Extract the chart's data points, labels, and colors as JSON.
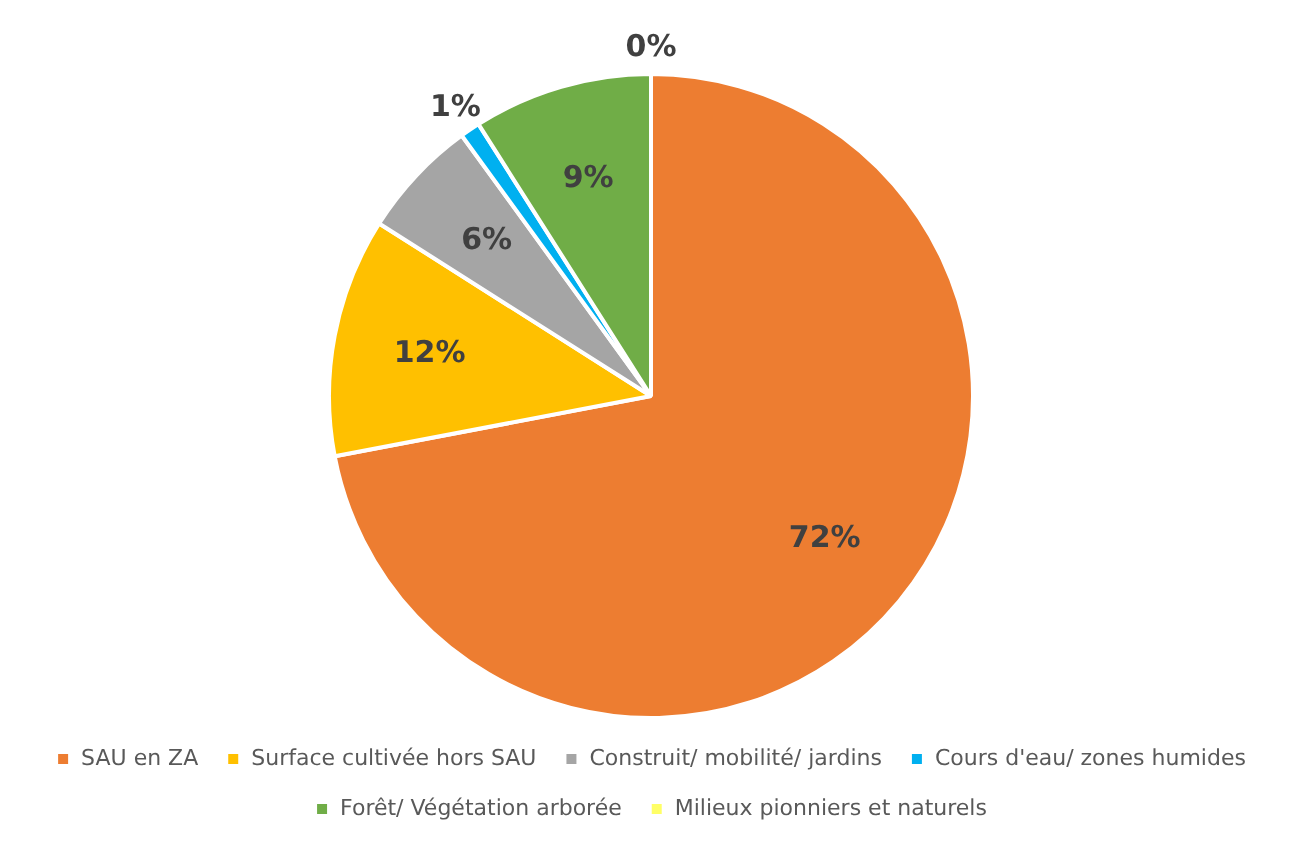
{
  "chart_data": {
    "type": "pie",
    "categories": [
      "SAU en ZA",
      "Surface cultivée hors SAU",
      "Construit/ mobilité/ jardins",
      "Cours d'eau/ zones humides",
      "Forêt/ Végétation arborée",
      "Milieux pionniers et naturels"
    ],
    "values": [
      72,
      12,
      6,
      1,
      9,
      0
    ],
    "colors": [
      "#ed7d31",
      "#ffc000",
      "#a5a5a5",
      "#00b0f0",
      "#70ad47",
      "#ffff66"
    ],
    "value_labels": [
      "72%",
      "12%",
      "6%",
      "1%",
      "9%",
      "0%"
    ],
    "legend": "bottom"
  }
}
